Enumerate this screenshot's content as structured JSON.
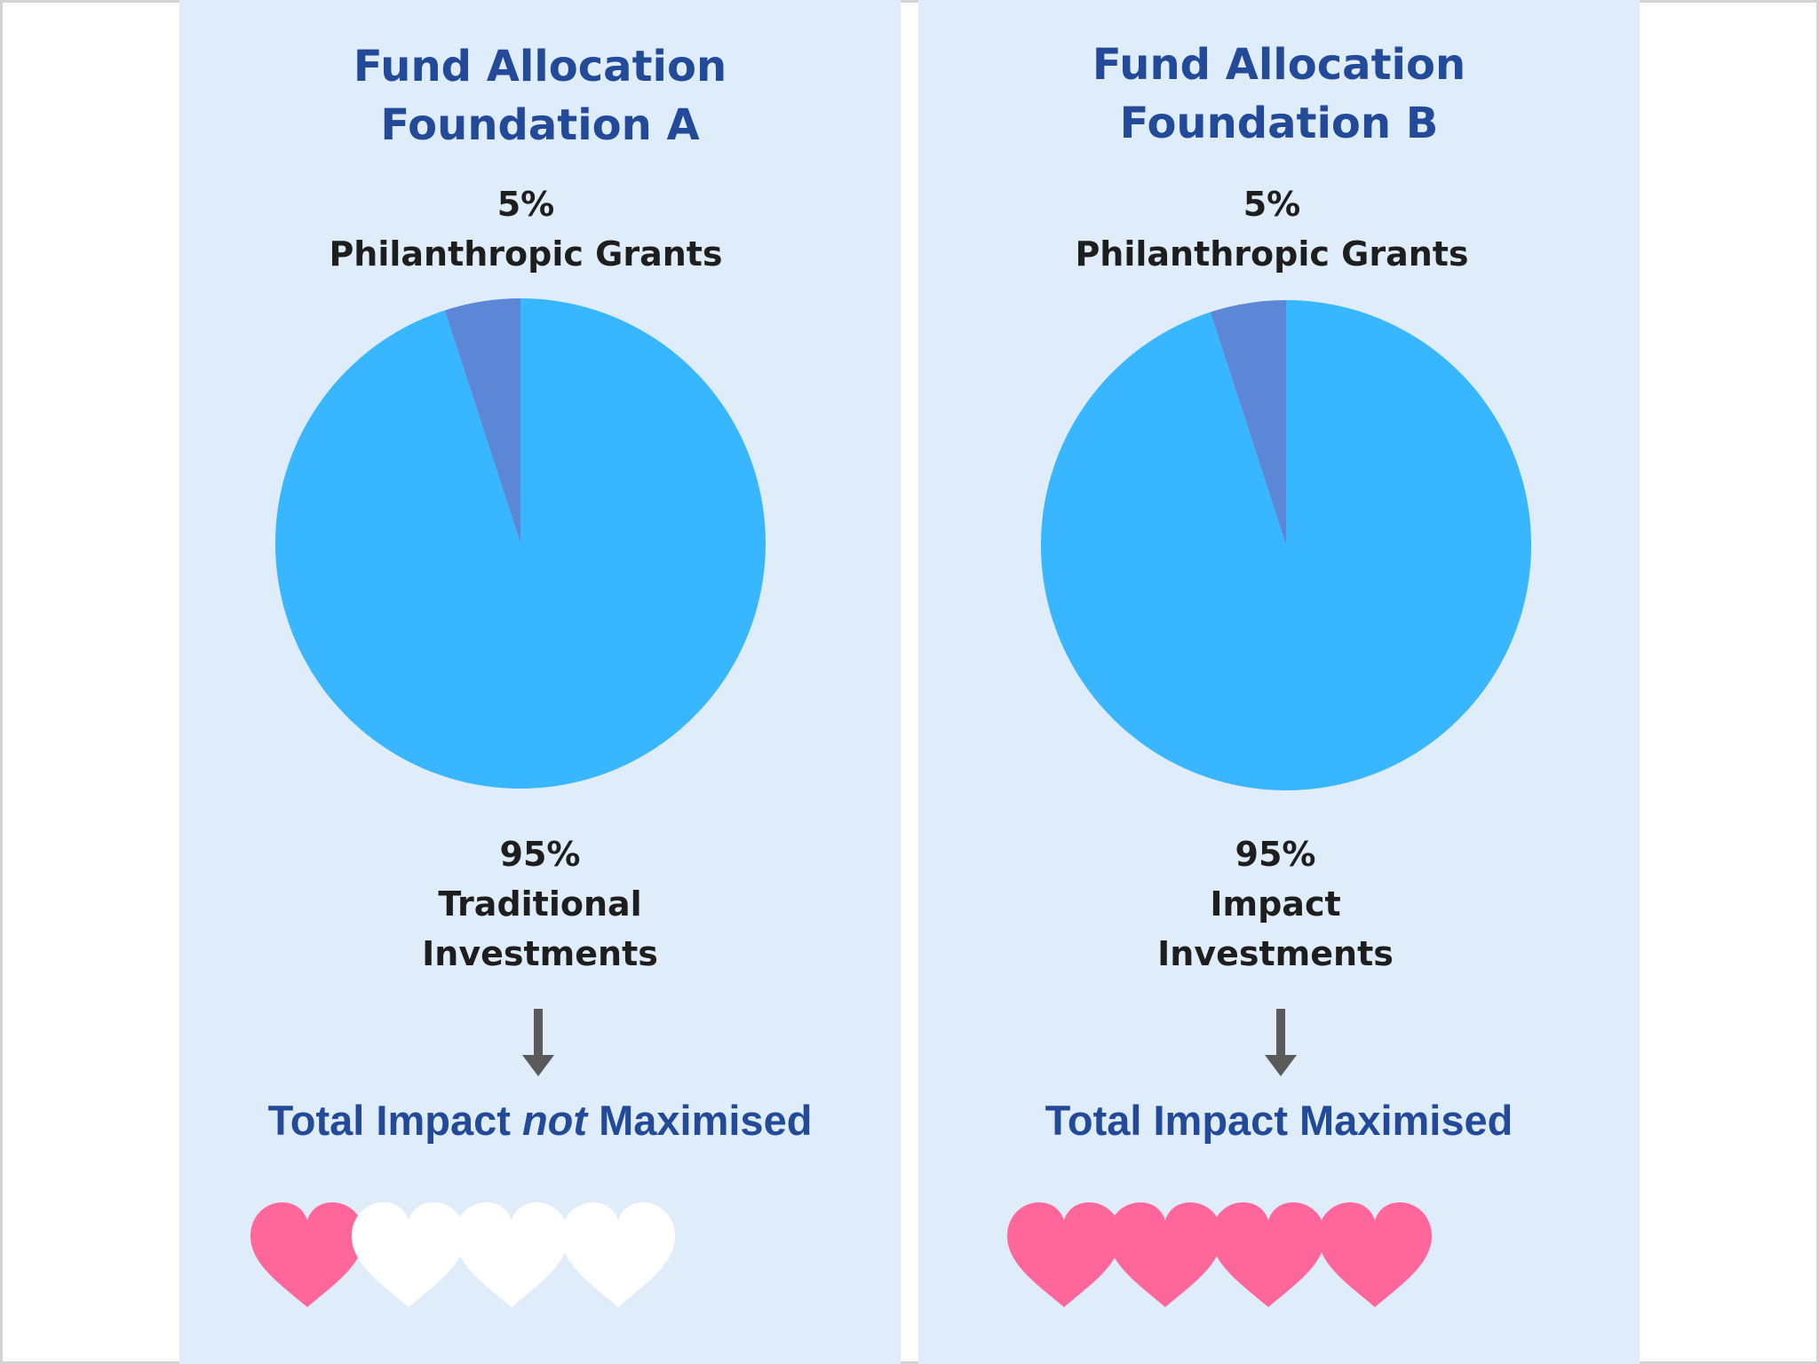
{
  "colors": {
    "panel_bg": "#dfecfa",
    "title": "#234a98",
    "label": "#1e1e1e",
    "pie_major": "#38b6ff",
    "pie_minor": "#5b87d6",
    "arrow": "#5a5a5a",
    "heart_filled": "#ff6699",
    "heart_empty": "#ffffff"
  },
  "panels": [
    {
      "title_line1": "Fund Allocation",
      "title_line2": "Foundation A",
      "minor_percent": "5%",
      "minor_label": "Philanthropic Grants",
      "major_percent": "95%",
      "major_label_line1": "Traditional",
      "major_label_line2": "Investments",
      "impact_before": "Total Impact ",
      "impact_emphasis": "not",
      "impact_after": " Maximised",
      "hearts_filled": 1,
      "hearts_total": 4
    },
    {
      "title_line1": "Fund Allocation",
      "title_line2": "Foundation B",
      "minor_percent": "5%",
      "minor_label": "Philanthropic Grants",
      "major_percent": "95%",
      "major_label_line1": "Impact",
      "major_label_line2": "Investments",
      "impact_before": "Total Impact Maximised",
      "impact_emphasis": "",
      "impact_after": "",
      "hearts_filled": 4,
      "hearts_total": 4
    }
  ],
  "chart_data": [
    {
      "type": "pie",
      "title": "Fund Allocation Foundation A",
      "categories": [
        "Philanthropic Grants",
        "Traditional Investments"
      ],
      "values": [
        5,
        95
      ]
    },
    {
      "type": "pie",
      "title": "Fund Allocation Foundation B",
      "categories": [
        "Philanthropic Grants",
        "Impact Investments"
      ],
      "values": [
        5,
        95
      ]
    }
  ]
}
